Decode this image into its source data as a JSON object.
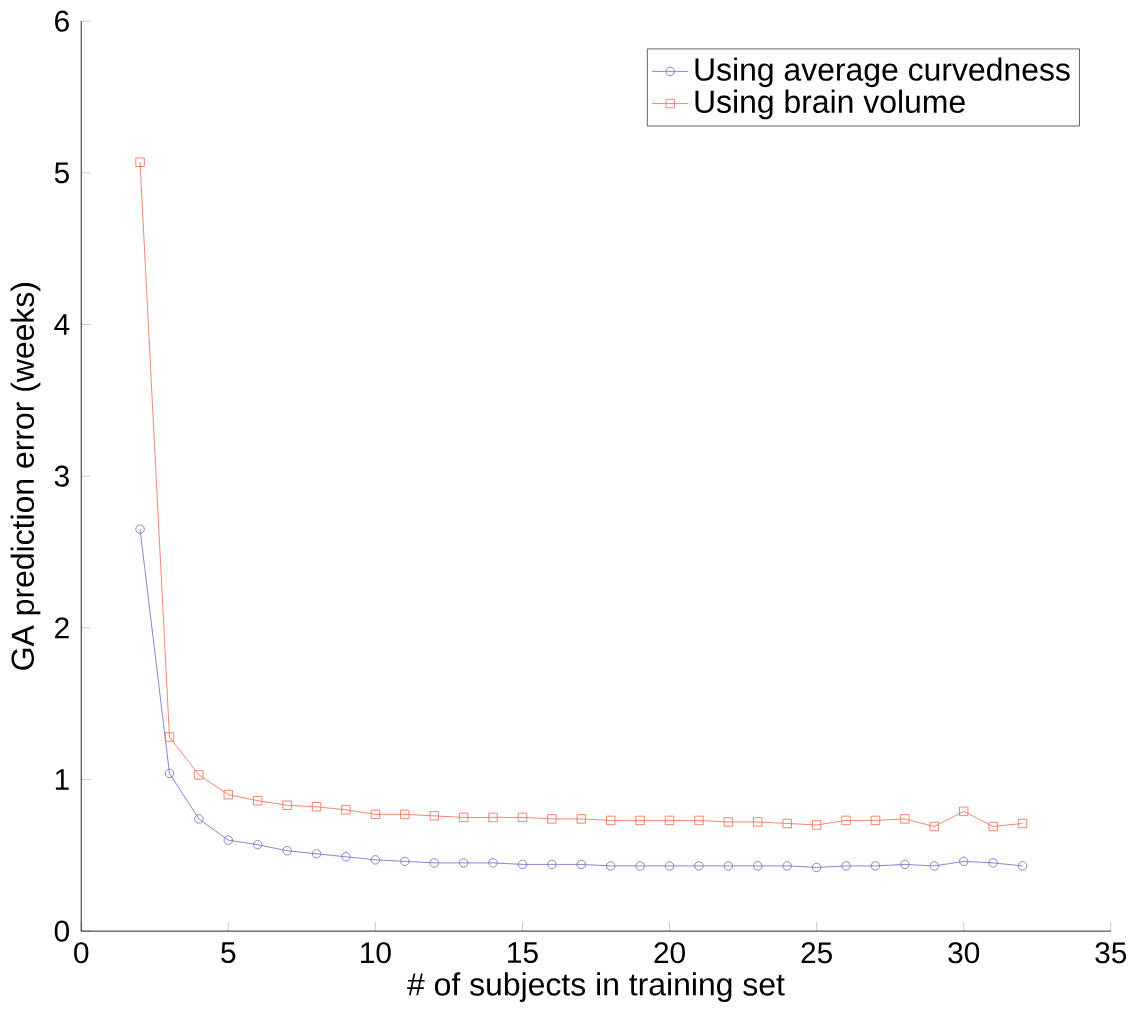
{
  "chart_data": {
    "type": "line",
    "xlabel": "# of subjects in training set",
    "ylabel": "GA prediction error (weeks)",
    "x": [
      2,
      3,
      4,
      5,
      6,
      7,
      8,
      9,
      10,
      11,
      12,
      13,
      14,
      15,
      16,
      17,
      18,
      19,
      20,
      21,
      22,
      23,
      24,
      25,
      26,
      27,
      28,
      29,
      30,
      31,
      32
    ],
    "series": [
      {
        "name": "Using average curvedness",
        "color": "#6f72c8",
        "marker": "circle",
        "values": [
          2.65,
          1.04,
          0.74,
          0.6,
          0.57,
          0.53,
          0.51,
          0.49,
          0.47,
          0.46,
          0.45,
          0.45,
          0.45,
          0.44,
          0.44,
          0.44,
          0.43,
          0.43,
          0.43,
          0.43,
          0.43,
          0.43,
          0.43,
          0.42,
          0.43,
          0.43,
          0.44,
          0.43,
          0.46,
          0.45,
          0.43
        ]
      },
      {
        "name": "Using brain volume",
        "color": "#f4705a",
        "marker": "square",
        "values": [
          5.07,
          1.28,
          1.03,
          0.9,
          0.86,
          0.83,
          0.82,
          0.8,
          0.77,
          0.77,
          0.76,
          0.75,
          0.75,
          0.75,
          0.74,
          0.74,
          0.73,
          0.73,
          0.73,
          0.73,
          0.72,
          0.72,
          0.71,
          0.7,
          0.73,
          0.73,
          0.74,
          0.69,
          0.79,
          0.69,
          0.71
        ]
      }
    ],
    "xlim": [
      0,
      35
    ],
    "ylim": [
      0,
      6
    ],
    "xticks": [
      0,
      5,
      10,
      15,
      20,
      25,
      30,
      35
    ],
    "yticks": [
      0,
      1,
      2,
      3,
      4,
      5,
      6
    ],
    "legend": "top right",
    "grid": false,
    "line_style": "solid"
  }
}
